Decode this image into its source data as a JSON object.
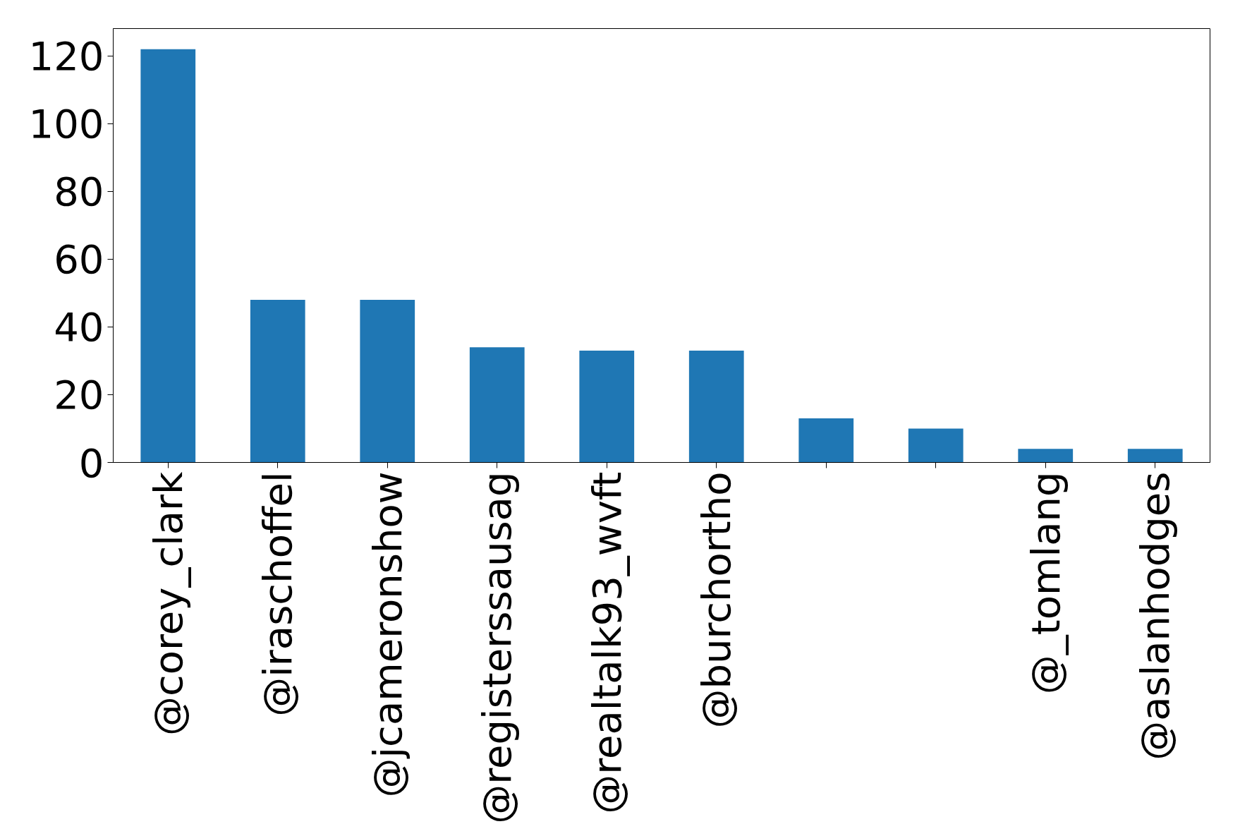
{
  "chart_data": {
    "type": "bar",
    "categories": [
      "@corey_clark",
      "@iraschoffel",
      "@jcameronshow",
      "@registerssausag",
      "@realtalk93_wvft",
      "@burchortho",
      null,
      null,
      "@_tomlang",
      "@aslanhodges"
    ],
    "values": [
      122,
      48,
      48,
      34,
      33,
      33,
      13,
      10,
      4,
      4
    ],
    "color": "#1f77b4",
    "ylim": [
      0,
      128.1
    ],
    "yticks": [
      0,
      20,
      40,
      60,
      80,
      100,
      120
    ],
    "grid": false
  }
}
